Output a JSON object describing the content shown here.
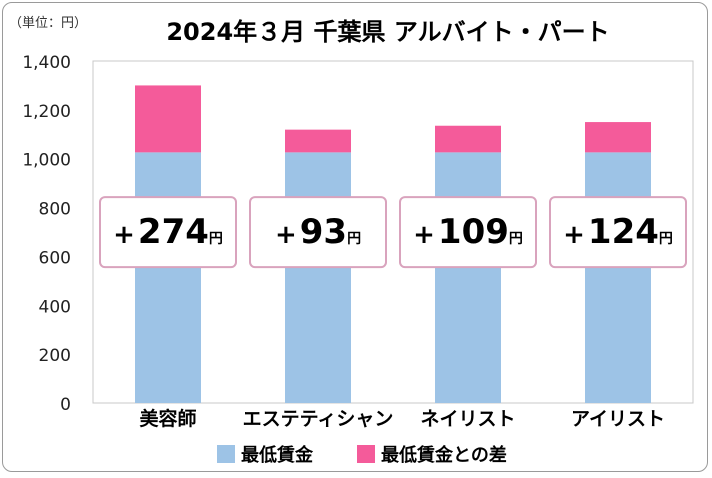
{
  "chart_data": {
    "type": "bar",
    "stacked": true,
    "title": "2024年３月 千葉県 アルバイト・パート",
    "unit_label": "（単位：円）",
    "categories": [
      "美容師",
      "エステティシャン",
      "ネイリスト",
      "アイリスト"
    ],
    "series": [
      {
        "name": "最低賃金",
        "values": [
          1026,
          1026,
          1026,
          1026
        ],
        "color": "#9dc3e6"
      },
      {
        "name": "最低賃金との差",
        "values": [
          274,
          93,
          109,
          124
        ],
        "color": "#f45b9a"
      }
    ],
    "difference_labels": [
      {
        "sign": "+",
        "number": "274",
        "unit": "円"
      },
      {
        "sign": "+",
        "number": "93",
        "unit": "円"
      },
      {
        "sign": "+",
        "number": "109",
        "unit": "円"
      },
      {
        "sign": "+",
        "number": "124",
        "unit": "円"
      }
    ],
    "ylim": [
      0,
      1400
    ],
    "yticks": [
      0,
      200,
      400,
      600,
      800,
      1000,
      1200,
      1400
    ],
    "ytick_labels": [
      "0",
      "200",
      "400",
      "600",
      "800",
      "1,000",
      "1,200",
      "1,400"
    ],
    "grid": false,
    "legend_position": "bottom"
  }
}
